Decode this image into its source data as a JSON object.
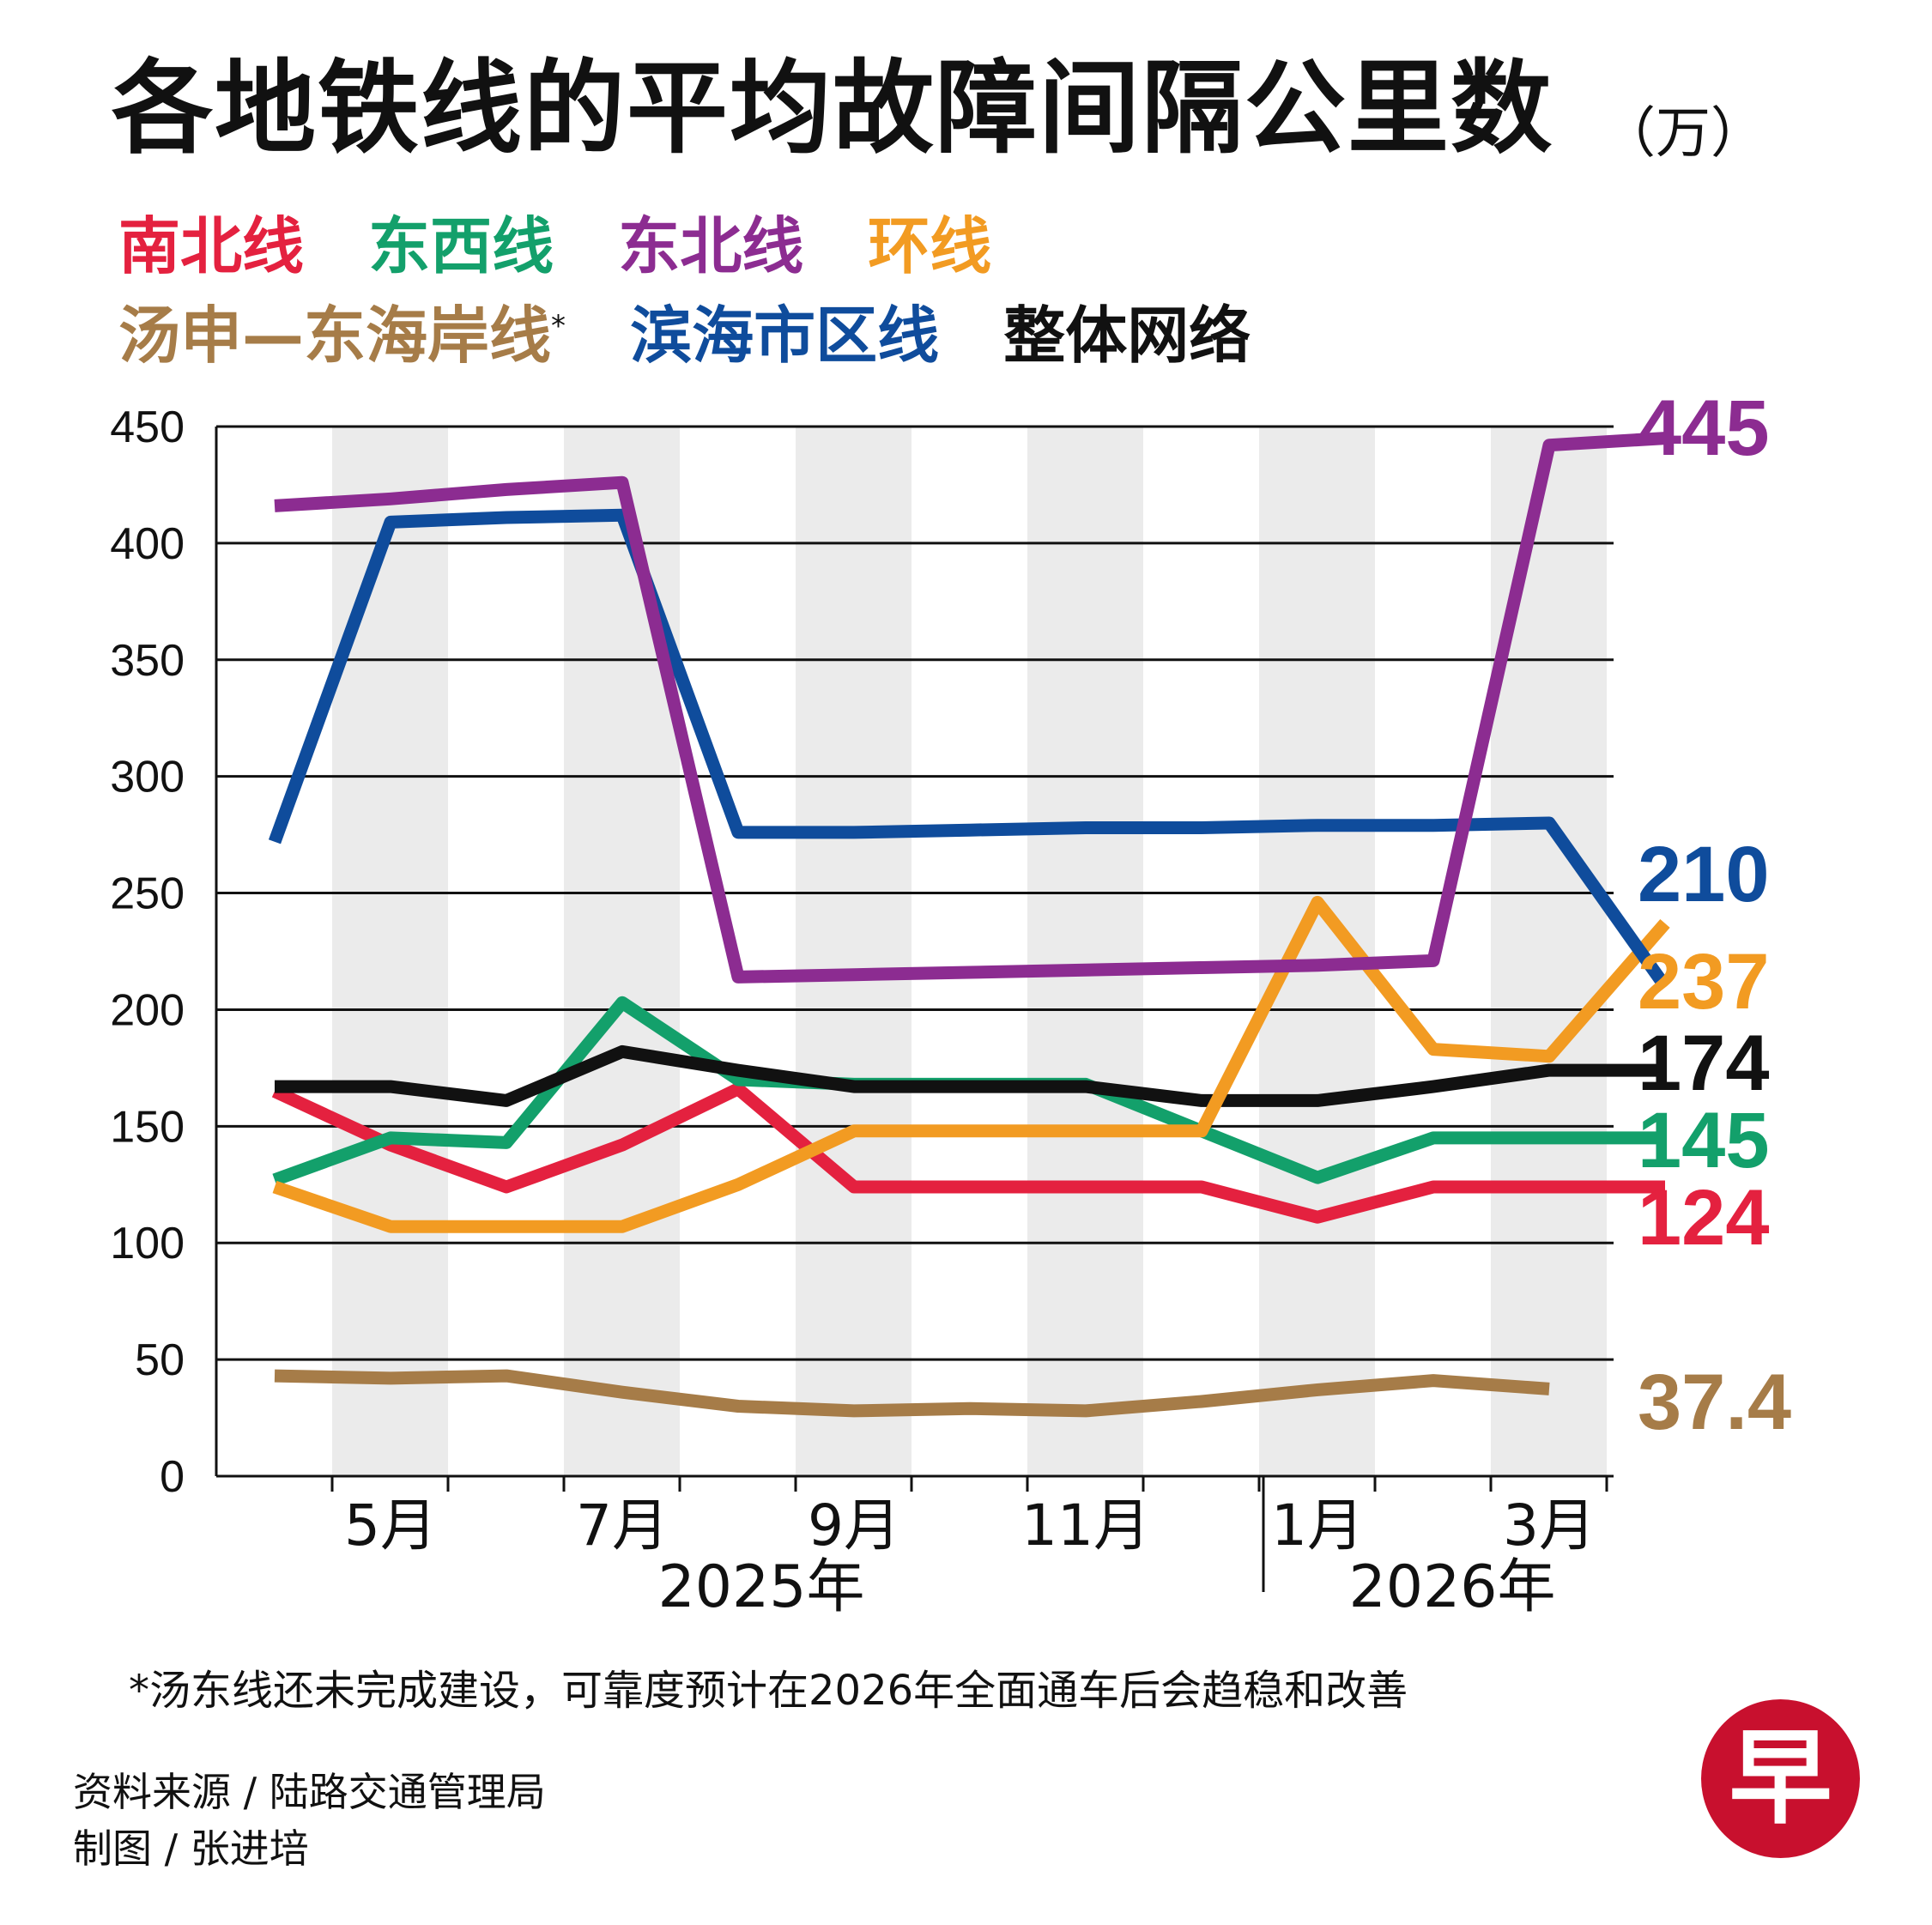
{
  "title": "各地铁线的平均故障间隔公里数",
  "unit": "（万）",
  "legend_row1": [
    {
      "label": "南北线",
      "color": "#e4213f"
    },
    {
      "label": "东西线",
      "color": "#13a06b"
    },
    {
      "label": "东北线",
      "color": "#8c2c91"
    },
    {
      "label": "环线",
      "color": "#f29b22"
    }
  ],
  "legend_row2": [
    {
      "label": "汤申—东海岸线",
      "color": "#a67c48",
      "mark": "*"
    },
    {
      "label": "滨海市区线",
      "color": "#0f4c9c"
    },
    {
      "label": "整体网络",
      "color": "#111111"
    }
  ],
  "chart_data": {
    "type": "line",
    "ylim": [
      0,
      450
    ],
    "yticks": [
      0,
      50,
      100,
      150,
      200,
      250,
      300,
      350,
      400,
      450
    ],
    "month_labels": [
      "5月",
      "7月",
      "9月",
      "11月",
      "1月",
      "3月"
    ],
    "year_labels": [
      "2025年",
      "2026年"
    ],
    "series": [
      {
        "name": "东北线",
        "color": "#8c2c91",
        "values": [
          416,
          419,
          423,
          426,
          214,
          215,
          216,
          217,
          218,
          219,
          221,
          442,
          445
        ],
        "end_label": "445"
      },
      {
        "name": "滨海市区线",
        "color": "#0f4c9c",
        "values": [
          272,
          409,
          411,
          412,
          276,
          276,
          277,
          278,
          278,
          279,
          279,
          280,
          210
        ],
        "end_label": "210"
      },
      {
        "name": "环线",
        "color": "#f29b22",
        "values": [
          124,
          107,
          107,
          107,
          125,
          148,
          148,
          148,
          148,
          246,
          183,
          180,
          237
        ],
        "end_label": "237"
      },
      {
        "name": "整体网络",
        "color": "#111111",
        "values": [
          167,
          167,
          161,
          182,
          174,
          167,
          167,
          167,
          161,
          161,
          167,
          174,
          174
        ],
        "end_label": "174"
      },
      {
        "name": "东西线",
        "color": "#13a06b",
        "values": [
          127,
          145,
          143,
          203,
          170,
          168,
          168,
          168,
          148,
          128,
          145,
          145,
          145
        ],
        "end_label": "145"
      },
      {
        "name": "南北线",
        "color": "#e4213f",
        "values": [
          165,
          142,
          124,
          142,
          166,
          124,
          124,
          124,
          124,
          111,
          124,
          124,
          124
        ],
        "end_label": "124"
      },
      {
        "name": "汤申—东海岸线",
        "color": "#a67c48",
        "values": [
          43,
          42,
          43,
          36,
          30,
          28,
          29,
          28,
          32,
          37,
          41,
          37.4
        ],
        "end_label": "37.4"
      }
    ]
  },
  "footnote": "*汤东线还未完成建设，可靠度预计在2026年全面通车后会趋稳和改善",
  "source": "资料来源 / 陆路交通管理局",
  "credit": "制图 / 张进培",
  "logo_text": "早"
}
